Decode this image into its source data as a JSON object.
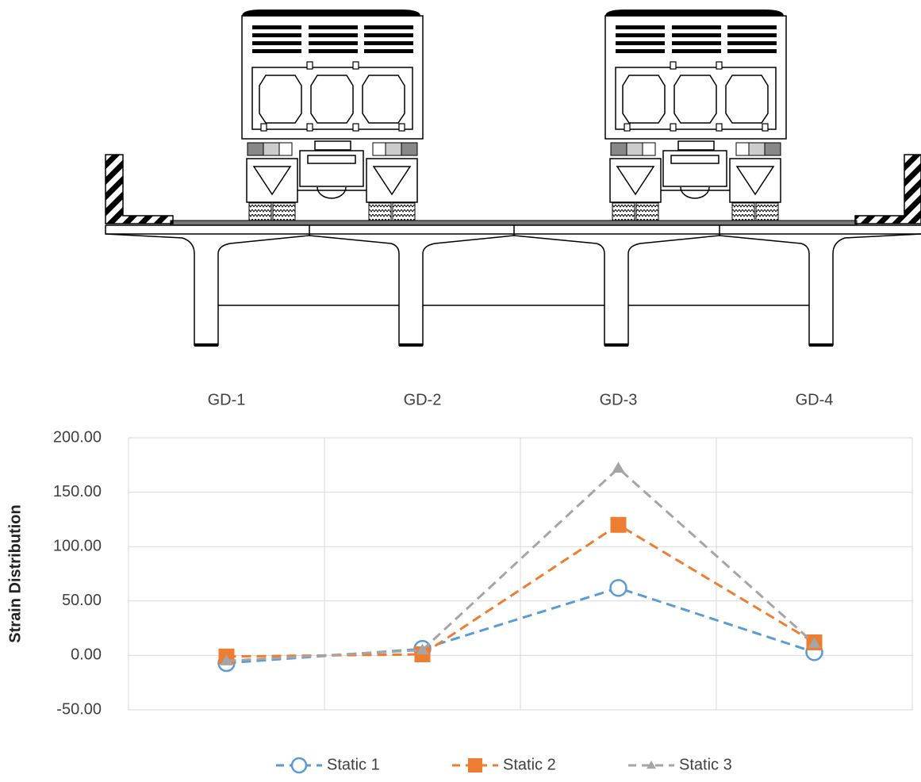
{
  "chart_data": {
    "type": "line",
    "categories": [
      "GD-1",
      "GD-2",
      "GD-3",
      "GD-4"
    ],
    "y_label": "Strain Distribution",
    "ylim": [
      -50,
      200
    ],
    "yticks": [
      {
        "value": -50,
        "label": "-50.00"
      },
      {
        "value": 0,
        "label": "0.00"
      },
      {
        "value": 50,
        "label": "50.00"
      },
      {
        "value": 100,
        "label": "100.00"
      },
      {
        "value": 150,
        "label": "150.00"
      },
      {
        "value": 200,
        "label": "200.00"
      }
    ],
    "grid": true,
    "legend": "bottom",
    "series": [
      {
        "name": "Static 1",
        "color": "#5b9bd5",
        "marker": "circle",
        "values": [
          -7,
          6,
          62,
          3
        ]
      },
      {
        "name": "Static 2",
        "color": "#ed7d31",
        "marker": "square",
        "values": [
          -1,
          1,
          120,
          12
        ]
      },
      {
        "name": "Static 3",
        "color": "#a5a5a5",
        "marker": "triangle",
        "values": [
          -5,
          5,
          172,
          11
        ]
      }
    ]
  }
}
